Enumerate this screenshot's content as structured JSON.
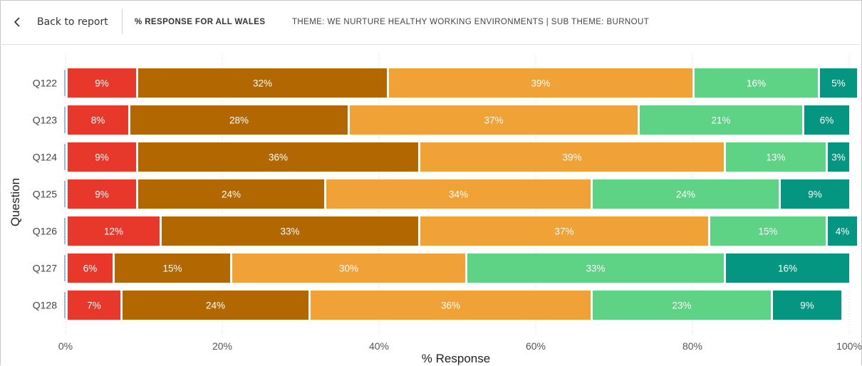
{
  "header": {
    "back_label": "Back to report",
    "title": "% RESPONSE FOR ALL WALES",
    "subtitle": "THEME: WE NURTURE HEALTHY WORKING ENVIRONMENTS | SUB THEME: BURNOUT",
    "back_icon": "chevron-left-icon"
  },
  "chart_data": {
    "type": "bar",
    "orientation": "horizontal",
    "stacked": true,
    "xlabel": "% Response",
    "ylabel": "Question",
    "xlim": [
      0,
      100
    ],
    "x_ticks": [
      "0%",
      "20%",
      "40%",
      "60%",
      "80%",
      "100%"
    ],
    "grid": "vertical dotted",
    "legend": "none",
    "categories": [
      "Q122",
      "Q123",
      "Q124",
      "Q125",
      "Q126",
      "Q127",
      "Q128"
    ],
    "colors": [
      "#e8382b",
      "#b36700",
      "#f0a236",
      "#5ed285",
      "#049681"
    ],
    "series": [
      {
        "values": [
          9,
          8,
          9,
          9,
          12,
          6,
          7
        ]
      },
      {
        "values": [
          32,
          28,
          36,
          24,
          33,
          15,
          24
        ]
      },
      {
        "values": [
          39,
          37,
          39,
          34,
          37,
          30,
          36
        ]
      },
      {
        "values": [
          16,
          21,
          13,
          24,
          15,
          33,
          23
        ]
      },
      {
        "values": [
          5,
          6,
          3,
          9,
          4,
          16,
          9
        ]
      }
    ]
  }
}
